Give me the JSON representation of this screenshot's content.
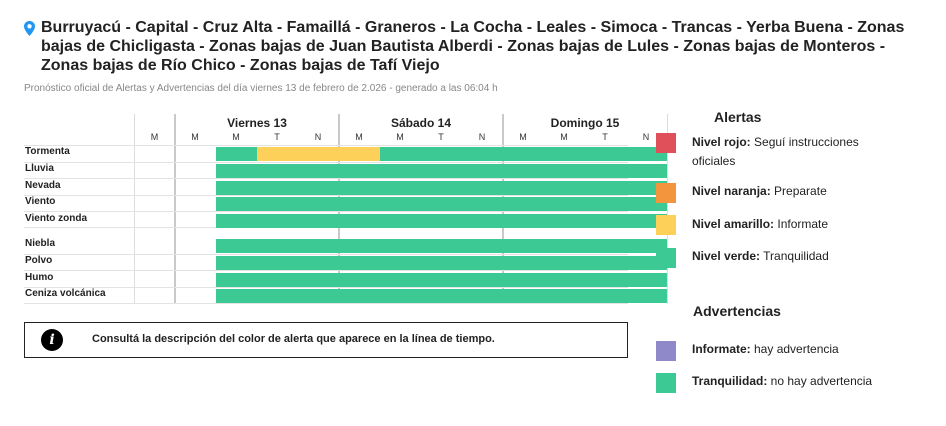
{
  "header": {
    "title": "Burruyacú - Capital - Cruz Alta - Famaillá - Graneros - La Cocha - Leales - Simoca - Trancas - Yerba Buena - Zonas bajas de Chicligasta - Zonas bajas de Juan Bautista Alberdi - Zonas bajas de Lules - Zonas bajas de Monteros - Zonas bajas de Río Chico - Zonas bajas de Tafí Viejo",
    "subtitle": "Pronóstico oficial de Alertas y Advertencias del día viernes 13 de febrero de 2.026 - generado a las 06:04 h",
    "icon": "location-pin-icon"
  },
  "colors": {
    "green": "#3cc993",
    "yellow": "#fdd05a",
    "orange": "#f2953c",
    "red": "#e0505a",
    "purple": "#8f88c9"
  },
  "timeline": {
    "days": [
      {
        "name": "Viernes 13",
        "slots": [
          "M",
          "M",
          "T",
          "N"
        ]
      },
      {
        "name": "Sábado 14",
        "slots": [
          "M",
          "M",
          "T",
          "N"
        ]
      },
      {
        "name": "Domingo 15",
        "slots": [
          "M",
          "M",
          "T",
          "N"
        ]
      }
    ],
    "leading_slot": "M",
    "rows": [
      {
        "label": "Tormenta",
        "segments": [
          {
            "from": 0.25,
            "to": 0.5,
            "level": "green"
          },
          {
            "from": 0.5,
            "to": 1.0,
            "level": "yellow"
          },
          {
            "from": 1.0,
            "to": 1.25,
            "level": "yellow"
          },
          {
            "from": 1.25,
            "to": 3.0,
            "level": "green"
          }
        ]
      },
      {
        "label": "Lluvia",
        "segments": [
          {
            "from": 0.25,
            "to": 3.0,
            "level": "green"
          }
        ]
      },
      {
        "label": "Nevada",
        "segments": [
          {
            "from": 0.25,
            "to": 3.0,
            "level": "green"
          }
        ]
      },
      {
        "label": "Viento",
        "segments": [
          {
            "from": 0.25,
            "to": 3.0,
            "level": "green"
          }
        ]
      },
      {
        "label": "Viento zonda",
        "segments": [
          {
            "from": 0.25,
            "to": 3.0,
            "level": "green"
          }
        ]
      },
      {
        "label": "Niebla",
        "segments": [
          {
            "from": 0.25,
            "to": 3.0,
            "level": "green"
          }
        ]
      },
      {
        "label": "Polvo",
        "segments": [
          {
            "from": 0.25,
            "to": 3.0,
            "level": "green"
          }
        ]
      },
      {
        "label": "Humo",
        "segments": [
          {
            "from": 0.25,
            "to": 3.0,
            "level": "green"
          }
        ]
      },
      {
        "label": "Ceniza volcánica",
        "segments": [
          {
            "from": 0.25,
            "to": 3.0,
            "level": "green"
          }
        ]
      }
    ]
  },
  "info_box": {
    "icon": "info-icon",
    "text": "Consultá la descripción del color de alerta que aparece en la línea de tiempo."
  },
  "legend": {
    "alerts_title": "Alertas",
    "alerts": [
      {
        "level": "Nivel rojo:",
        "desc": "Seguí instrucciones oficiales",
        "color": "red"
      },
      {
        "level": "Nivel naranja:",
        "desc": "Preparate",
        "color": "orange"
      },
      {
        "level": "Nivel amarillo:",
        "desc": "Informate",
        "color": "yellow"
      },
      {
        "level": "Nivel verde:",
        "desc": "Tranquilidad",
        "color": "green"
      }
    ],
    "warnings_title": "Advertencias",
    "warnings": [
      {
        "level": "Informate:",
        "desc": "hay advertencia",
        "color": "purple"
      },
      {
        "level": "Tranquilidad:",
        "desc": "no hay advertencia",
        "color": "green"
      }
    ]
  }
}
